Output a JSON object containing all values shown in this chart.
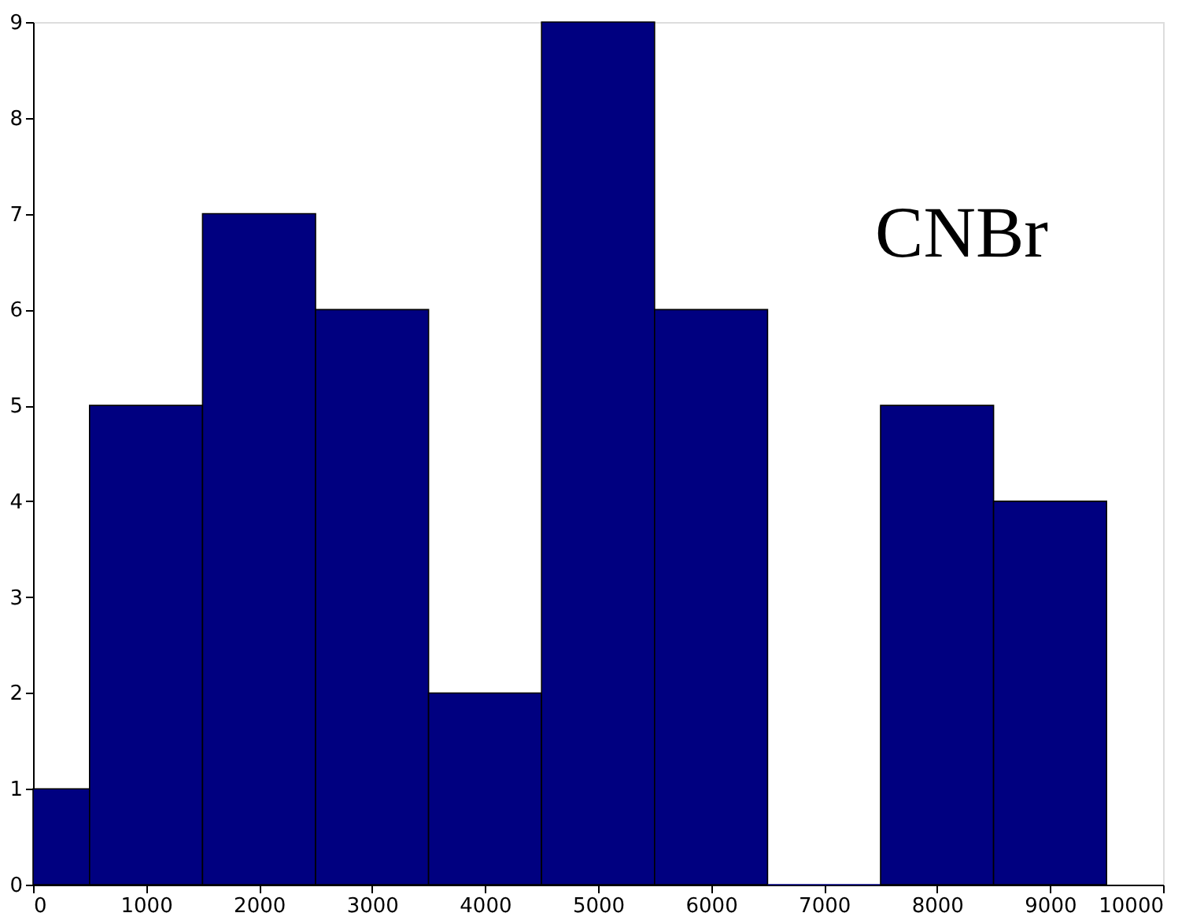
{
  "chart_data": {
    "type": "histogram",
    "bins": [
      0,
      500,
      1500,
      2500,
      3500,
      4500,
      5500,
      6500,
      7500,
      8500,
      9500
    ],
    "values": [
      1,
      5,
      7,
      6,
      2,
      9,
      6,
      0,
      5,
      4
    ],
    "color": "#000080",
    "xlim": [
      0,
      10000
    ],
    "xticks": [
      0,
      1000,
      2000,
      3000,
      4000,
      5000,
      6000,
      7000,
      8000,
      9000,
      10000
    ],
    "ylim": [
      0,
      9
    ],
    "yticks": [
      0,
      1,
      2,
      3,
      4,
      5,
      6,
      7,
      8,
      9
    ],
    "grid": false,
    "annotations": [
      "CNBr"
    ]
  }
}
